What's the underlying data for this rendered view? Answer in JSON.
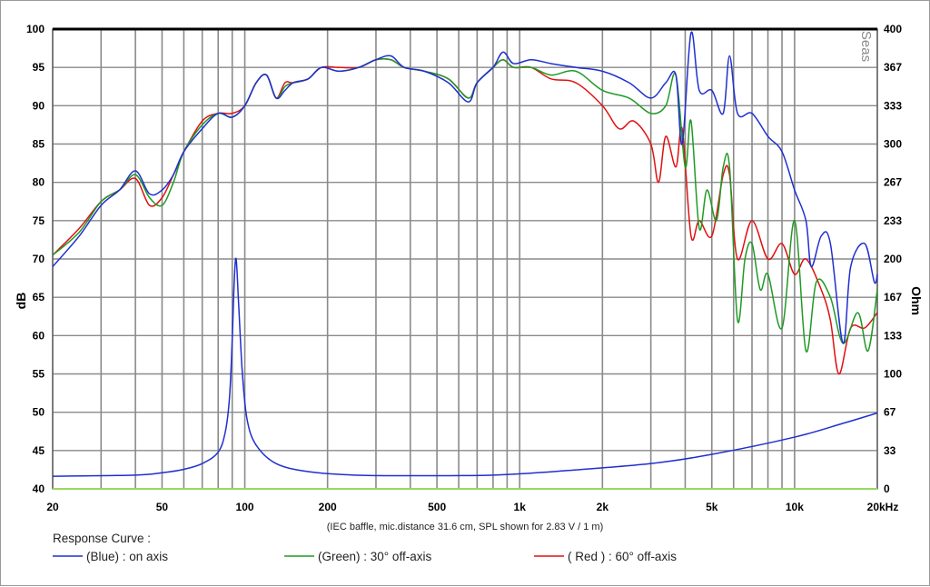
{
  "chart_data": {
    "type": "line",
    "x_scale": "log",
    "xlim": [
      20,
      20000
    ],
    "ylim_left": [
      40,
      100
    ],
    "ylim_right": [
      0,
      400
    ],
    "ylabel": "dB",
    "ylabel_right": "Ohm",
    "x_tick_labels": [
      {
        "v": 20,
        "t": "20"
      },
      {
        "v": 50,
        "t": "50"
      },
      {
        "v": 100,
        "t": "100"
      },
      {
        "v": 200,
        "t": "200"
      },
      {
        "v": 500,
        "t": "500"
      },
      {
        "v": 1000,
        "t": "1k"
      },
      {
        "v": 2000,
        "t": "2k"
      },
      {
        "v": 5000,
        "t": "5k"
      },
      {
        "v": 10000,
        "t": "10k"
      },
      {
        "v": 20000,
        "t": "20kHz"
      }
    ],
    "y_ticks_left": [
      40,
      45,
      50,
      55,
      60,
      65,
      70,
      75,
      80,
      85,
      90,
      95,
      100
    ],
    "y_ticks_right": [
      {
        "v": 0,
        "t": "0"
      },
      {
        "v": 33.3,
        "t": "33"
      },
      {
        "v": 66.7,
        "t": "67"
      },
      {
        "v": 100,
        "t": "100"
      },
      {
        "v": 133.3,
        "t": "133"
      },
      {
        "v": 166.7,
        "t": "167"
      },
      {
        "v": 200,
        "t": "200"
      },
      {
        "v": 233.3,
        "t": "233"
      },
      {
        "v": 266.7,
        "t": "267"
      },
      {
        "v": 300,
        "t": "300"
      },
      {
        "v": 333.3,
        "t": "333"
      },
      {
        "v": 366.7,
        "t": "367"
      },
      {
        "v": 400,
        "t": "400"
      }
    ],
    "grid": true,
    "note": "(IEC baffle, mic.distance 31.6 cm, SPL shown for 2.83 V / 1 m)",
    "brand": "Seas",
    "legend_title": "Response Curve :",
    "legend_placement": "bottom",
    "series": [
      {
        "name": "(Blue)  : on axis",
        "color": "#1f2fd0",
        "axis": "left",
        "points": [
          [
            20,
            69
          ],
          [
            25,
            73
          ],
          [
            30,
            77
          ],
          [
            35,
            79
          ],
          [
            40,
            81.5
          ],
          [
            45,
            78.5
          ],
          [
            50,
            79
          ],
          [
            55,
            81
          ],
          [
            60,
            84
          ],
          [
            70,
            87
          ],
          [
            80,
            89
          ],
          [
            90,
            88.5
          ],
          [
            100,
            90
          ],
          [
            110,
            93
          ],
          [
            120,
            94
          ],
          [
            130,
            91
          ],
          [
            140,
            92
          ],
          [
            150,
            93
          ],
          [
            170,
            93.5
          ],
          [
            190,
            95
          ],
          [
            220,
            94.5
          ],
          [
            260,
            95
          ],
          [
            300,
            96
          ],
          [
            340,
            96.5
          ],
          [
            380,
            95
          ],
          [
            450,
            94.5
          ],
          [
            550,
            93
          ],
          [
            650,
            90.5
          ],
          [
            700,
            93
          ],
          [
            800,
            95
          ],
          [
            870,
            97
          ],
          [
            950,
            95.5
          ],
          [
            1100,
            96
          ],
          [
            1300,
            95.5
          ],
          [
            1600,
            95
          ],
          [
            2000,
            94.5
          ],
          [
            2500,
            93
          ],
          [
            3000,
            91
          ],
          [
            3400,
            93
          ],
          [
            3700,
            94
          ],
          [
            3900,
            85
          ],
          [
            4200,
            99.5
          ],
          [
            4500,
            92
          ],
          [
            5000,
            92
          ],
          [
            5500,
            89
          ],
          [
            5800,
            96.5
          ],
          [
            6200,
            89
          ],
          [
            7000,
            89
          ],
          [
            8000,
            86
          ],
          [
            9000,
            84
          ],
          [
            10000,
            79
          ],
          [
            11000,
            75
          ],
          [
            11500,
            69
          ],
          [
            12500,
            73
          ],
          [
            13500,
            72
          ],
          [
            15000,
            59
          ],
          [
            16000,
            69
          ],
          [
            18000,
            72
          ],
          [
            19500,
            67
          ],
          [
            20000,
            68
          ]
        ]
      },
      {
        "name": "(Green) : 30° off-axis",
        "color": "#1e9a24",
        "axis": "left",
        "points": [
          [
            20,
            70.5
          ],
          [
            25,
            73.5
          ],
          [
            30,
            77.5
          ],
          [
            35,
            79
          ],
          [
            40,
            81
          ],
          [
            45,
            78
          ],
          [
            50,
            77
          ],
          [
            55,
            80
          ],
          [
            60,
            84
          ],
          [
            70,
            87.5
          ],
          [
            80,
            89
          ],
          [
            90,
            88.5
          ],
          [
            100,
            90
          ],
          [
            110,
            93
          ],
          [
            120,
            94
          ],
          [
            130,
            91
          ],
          [
            140,
            92.5
          ],
          [
            150,
            93
          ],
          [
            170,
            93.5
          ],
          [
            190,
            95
          ],
          [
            220,
            94.5
          ],
          [
            260,
            95
          ],
          [
            300,
            96
          ],
          [
            340,
            96
          ],
          [
            380,
            95
          ],
          [
            450,
            94.5
          ],
          [
            550,
            93.5
          ],
          [
            650,
            91
          ],
          [
            700,
            93
          ],
          [
            800,
            95
          ],
          [
            870,
            96
          ],
          [
            950,
            95
          ],
          [
            1100,
            95
          ],
          [
            1300,
            94
          ],
          [
            1600,
            94.5
          ],
          [
            2000,
            92
          ],
          [
            2500,
            91
          ],
          [
            3000,
            89
          ],
          [
            3400,
            90
          ],
          [
            3700,
            94
          ],
          [
            4000,
            82
          ],
          [
            4200,
            88
          ],
          [
            4500,
            74
          ],
          [
            4800,
            79
          ],
          [
            5200,
            75
          ],
          [
            5500,
            82
          ],
          [
            5800,
            82
          ],
          [
            6200,
            62
          ],
          [
            6600,
            70
          ],
          [
            7000,
            72
          ],
          [
            7500,
            66
          ],
          [
            8000,
            68
          ],
          [
            9000,
            61
          ],
          [
            10000,
            75
          ],
          [
            11000,
            58
          ],
          [
            12000,
            67
          ],
          [
            13500,
            65
          ],
          [
            15000,
            59
          ],
          [
            17000,
            63
          ],
          [
            18500,
            58
          ],
          [
            20000,
            66
          ]
        ]
      },
      {
        "name": "( Red ) : 60° off-axis",
        "color": "#e01010",
        "axis": "left",
        "points": [
          [
            20,
            70.5
          ],
          [
            25,
            74
          ],
          [
            30,
            77.5
          ],
          [
            35,
            79
          ],
          [
            40,
            80.5
          ],
          [
            45,
            77
          ],
          [
            50,
            78
          ],
          [
            55,
            81
          ],
          [
            60,
            84
          ],
          [
            70,
            88
          ],
          [
            80,
            89
          ],
          [
            90,
            89
          ],
          [
            100,
            90
          ],
          [
            110,
            93
          ],
          [
            120,
            94
          ],
          [
            130,
            91
          ],
          [
            140,
            93
          ],
          [
            150,
            93
          ],
          [
            170,
            93.5
          ],
          [
            190,
            95
          ],
          [
            220,
            95
          ],
          [
            260,
            95
          ],
          [
            300,
            96
          ],
          [
            340,
            96
          ],
          [
            380,
            95
          ],
          [
            450,
            94.5
          ],
          [
            550,
            93.5
          ],
          [
            650,
            91
          ],
          [
            700,
            93
          ],
          [
            800,
            95
          ],
          [
            870,
            96
          ],
          [
            950,
            95
          ],
          [
            1100,
            95
          ],
          [
            1300,
            93.5
          ],
          [
            1600,
            93
          ],
          [
            2000,
            90
          ],
          [
            2300,
            87
          ],
          [
            2600,
            88
          ],
          [
            3000,
            85
          ],
          [
            3200,
            80
          ],
          [
            3400,
            86
          ],
          [
            3700,
            82
          ],
          [
            3900,
            87
          ],
          [
            4200,
            73
          ],
          [
            4500,
            75
          ],
          [
            5000,
            73
          ],
          [
            5500,
            81
          ],
          [
            5800,
            81
          ],
          [
            6200,
            70
          ],
          [
            7000,
            75
          ],
          [
            8000,
            70
          ],
          [
            9000,
            72
          ],
          [
            10000,
            68
          ],
          [
            11000,
            70
          ],
          [
            12500,
            66
          ],
          [
            13500,
            62
          ],
          [
            14500,
            55
          ],
          [
            16000,
            61
          ],
          [
            18000,
            61
          ],
          [
            20000,
            63
          ]
        ]
      },
      {
        "name": "impedance",
        "color": "#1f2fd0",
        "axis": "right",
        "points": [
          [
            20,
            11
          ],
          [
            40,
            12
          ],
          [
            50,
            14
          ],
          [
            60,
            17
          ],
          [
            70,
            22
          ],
          [
            80,
            32
          ],
          [
            85,
            50
          ],
          [
            88,
            80
          ],
          [
            90,
            130
          ],
          [
            91.5,
            180
          ],
          [
            93,
            200
          ],
          [
            95,
            160
          ],
          [
            98,
            100
          ],
          [
            102,
            60
          ],
          [
            110,
            38
          ],
          [
            130,
            22
          ],
          [
            170,
            15
          ],
          [
            250,
            12
          ],
          [
            400,
            11.5
          ],
          [
            800,
            12
          ],
          [
            1500,
            16
          ],
          [
            3000,
            22
          ],
          [
            5000,
            30
          ],
          [
            10000,
            45
          ],
          [
            15000,
            57
          ],
          [
            20000,
            66
          ]
        ]
      }
    ]
  }
}
